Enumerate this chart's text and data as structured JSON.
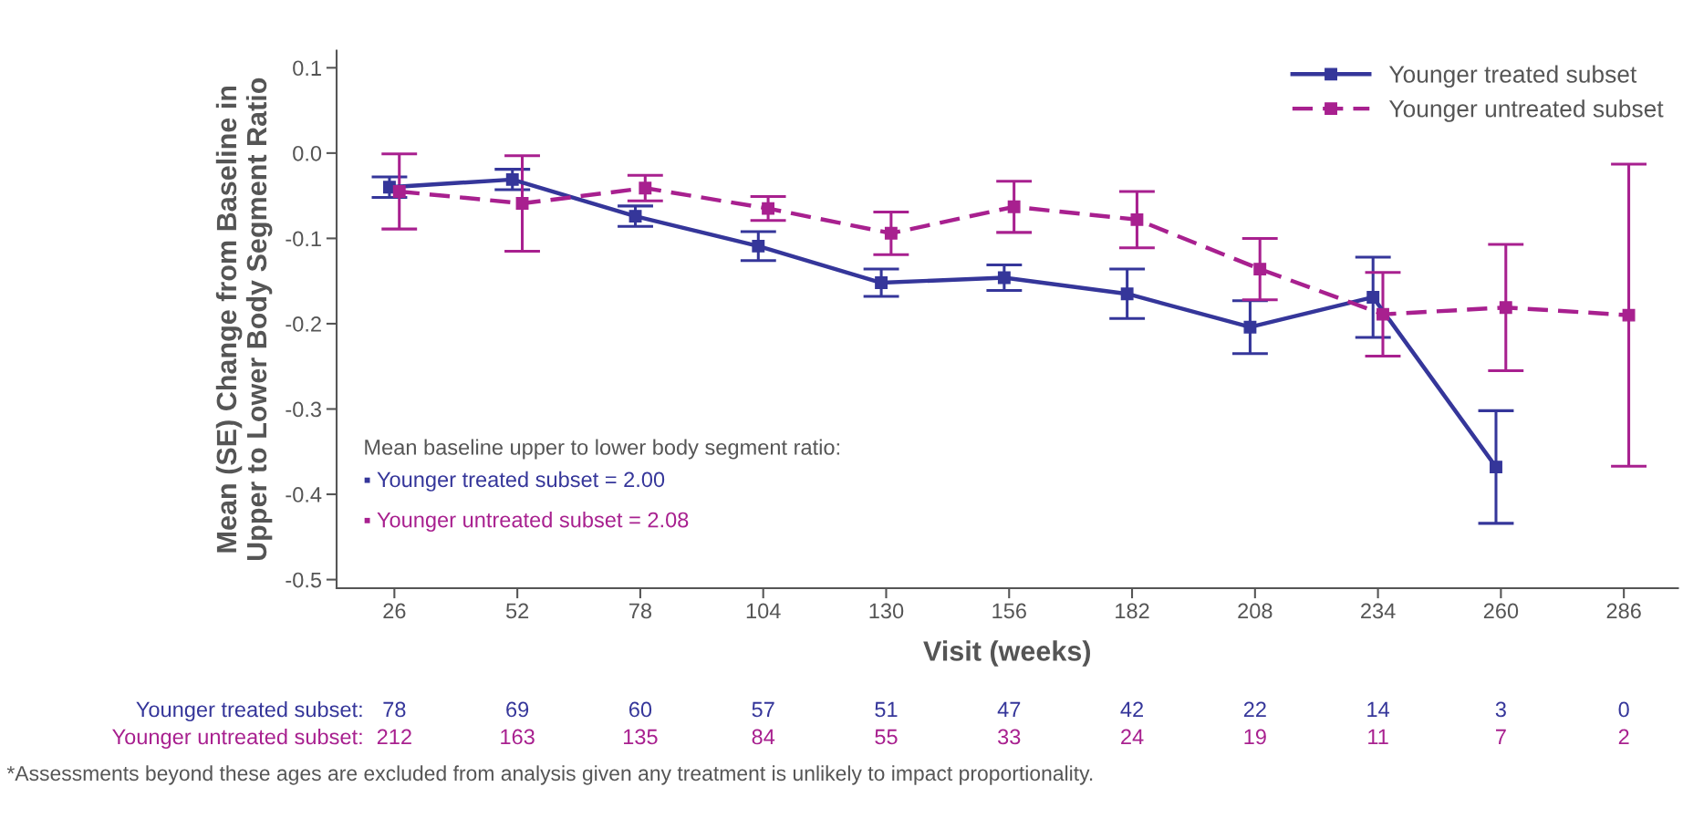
{
  "chart_data": {
    "type": "line",
    "xlabel": "Visit (weeks)",
    "ylabel": "Mean (SE) Change from Baseline in\nUpper to Lower Body Segment Ratio",
    "categories": [
      "26",
      "52",
      "78",
      "104",
      "130",
      "156",
      "182",
      "208",
      "234",
      "260",
      "286"
    ],
    "series": [
      {
        "name": "Younger treated subset",
        "color": "#35369a",
        "line_style": "solid",
        "values": [
          -0.04,
          -0.031,
          -0.074,
          -0.109,
          -0.152,
          -0.146,
          -0.165,
          -0.204,
          -0.169,
          -0.368,
          null
        ],
        "errors": [
          0.012,
          0.012,
          0.012,
          0.017,
          0.016,
          0.015,
          0.029,
          0.031,
          0.047,
          0.066,
          null
        ]
      },
      {
        "name": "Younger untreated subset",
        "color": "#a8208f",
        "line_style": "dashed",
        "values": [
          -0.045,
          -0.059,
          -0.041,
          -0.065,
          -0.094,
          -0.063,
          -0.078,
          -0.136,
          -0.189,
          -0.181,
          -0.19
        ],
        "errors": [
          0.044,
          0.056,
          0.015,
          0.014,
          0.025,
          0.03,
          0.033,
          0.036,
          0.049,
          0.074,
          0.177
        ]
      }
    ],
    "ylim": [
      -0.51,
      0.12
    ],
    "yticks": [
      {
        "value": 0.1,
        "label": "0.1"
      },
      {
        "value": 0.0,
        "label": "0.0"
      },
      {
        "value": -0.1,
        "label": "-0.1"
      },
      {
        "value": -0.2,
        "label": "-0.2"
      },
      {
        "value": -0.3,
        "label": "-0.3"
      },
      {
        "value": -0.4,
        "label": "-0.4"
      },
      {
        "value": -0.5,
        "label": "-0.5"
      }
    ],
    "marker": "square",
    "grid": false,
    "legend": "top right",
    "annotations": [
      "Mean baseline upper to lower body segment ratio:",
      "▪ Younger treated subset = 2.00",
      "▪ Younger untreated subset = 2.08",
      "Younger treated subset:",
      "Younger untreated subset:",
      "78",
      "69",
      "60",
      "57",
      "51",
      "47",
      "42",
      "22",
      "14",
      "3",
      "0",
      "212",
      "163",
      "135",
      "84",
      "55",
      "33",
      "24",
      "19",
      "11",
      "7",
      "2",
      "*Assessments beyond these ages are excluded from analysis given any treatment is unlikely to impact proportionality."
    ]
  }
}
